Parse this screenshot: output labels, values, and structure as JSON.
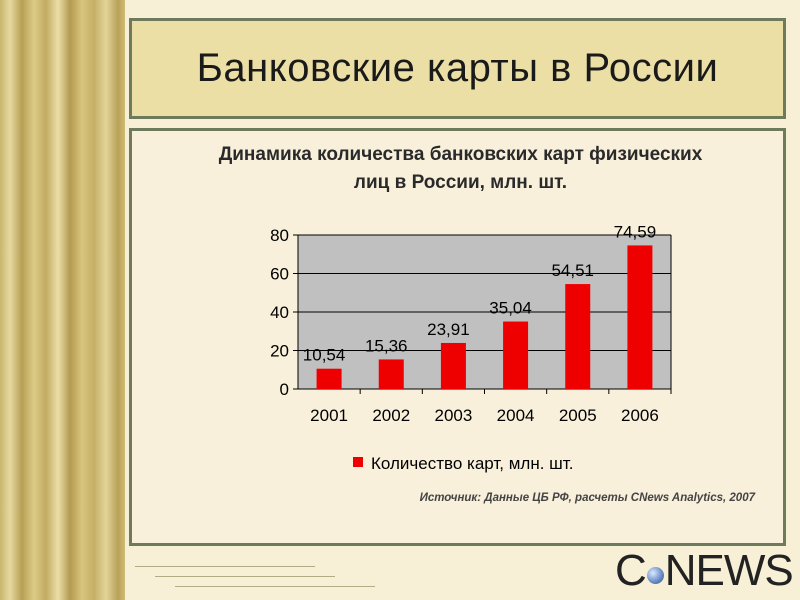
{
  "slide": {
    "title": "Банковские карты в России",
    "source": "Источник: Данные ЦБ РФ, расчеты CNews Analytics, 2007",
    "logo": {
      "prefix": "C",
      "suffix": "NEWS"
    }
  },
  "colors": {
    "bar": "#ee0000",
    "plot_bg": "#c0c0c0",
    "panel_bg": "#f8f0da"
  },
  "chart_data": {
    "type": "bar",
    "title_lines": [
      "Динамика количества банковских карт физических",
      "лиц в России, млн. шт."
    ],
    "categories": [
      "2001",
      "2002",
      "2003",
      "2004",
      "2005",
      "2006"
    ],
    "series": [
      {
        "name": "Количество карт, млн. шт.",
        "values": [
          10.54,
          15.36,
          23.91,
          35.04,
          54.51,
          74.59
        ]
      }
    ],
    "data_labels": [
      "10,54",
      "15,36",
      "23,91",
      "35,04",
      "54,51",
      "74,59"
    ],
    "y_ticks": [
      0,
      20,
      40,
      60,
      80
    ],
    "ylim": [
      0,
      80
    ],
    "grid": true,
    "legend": "bottom-center"
  }
}
